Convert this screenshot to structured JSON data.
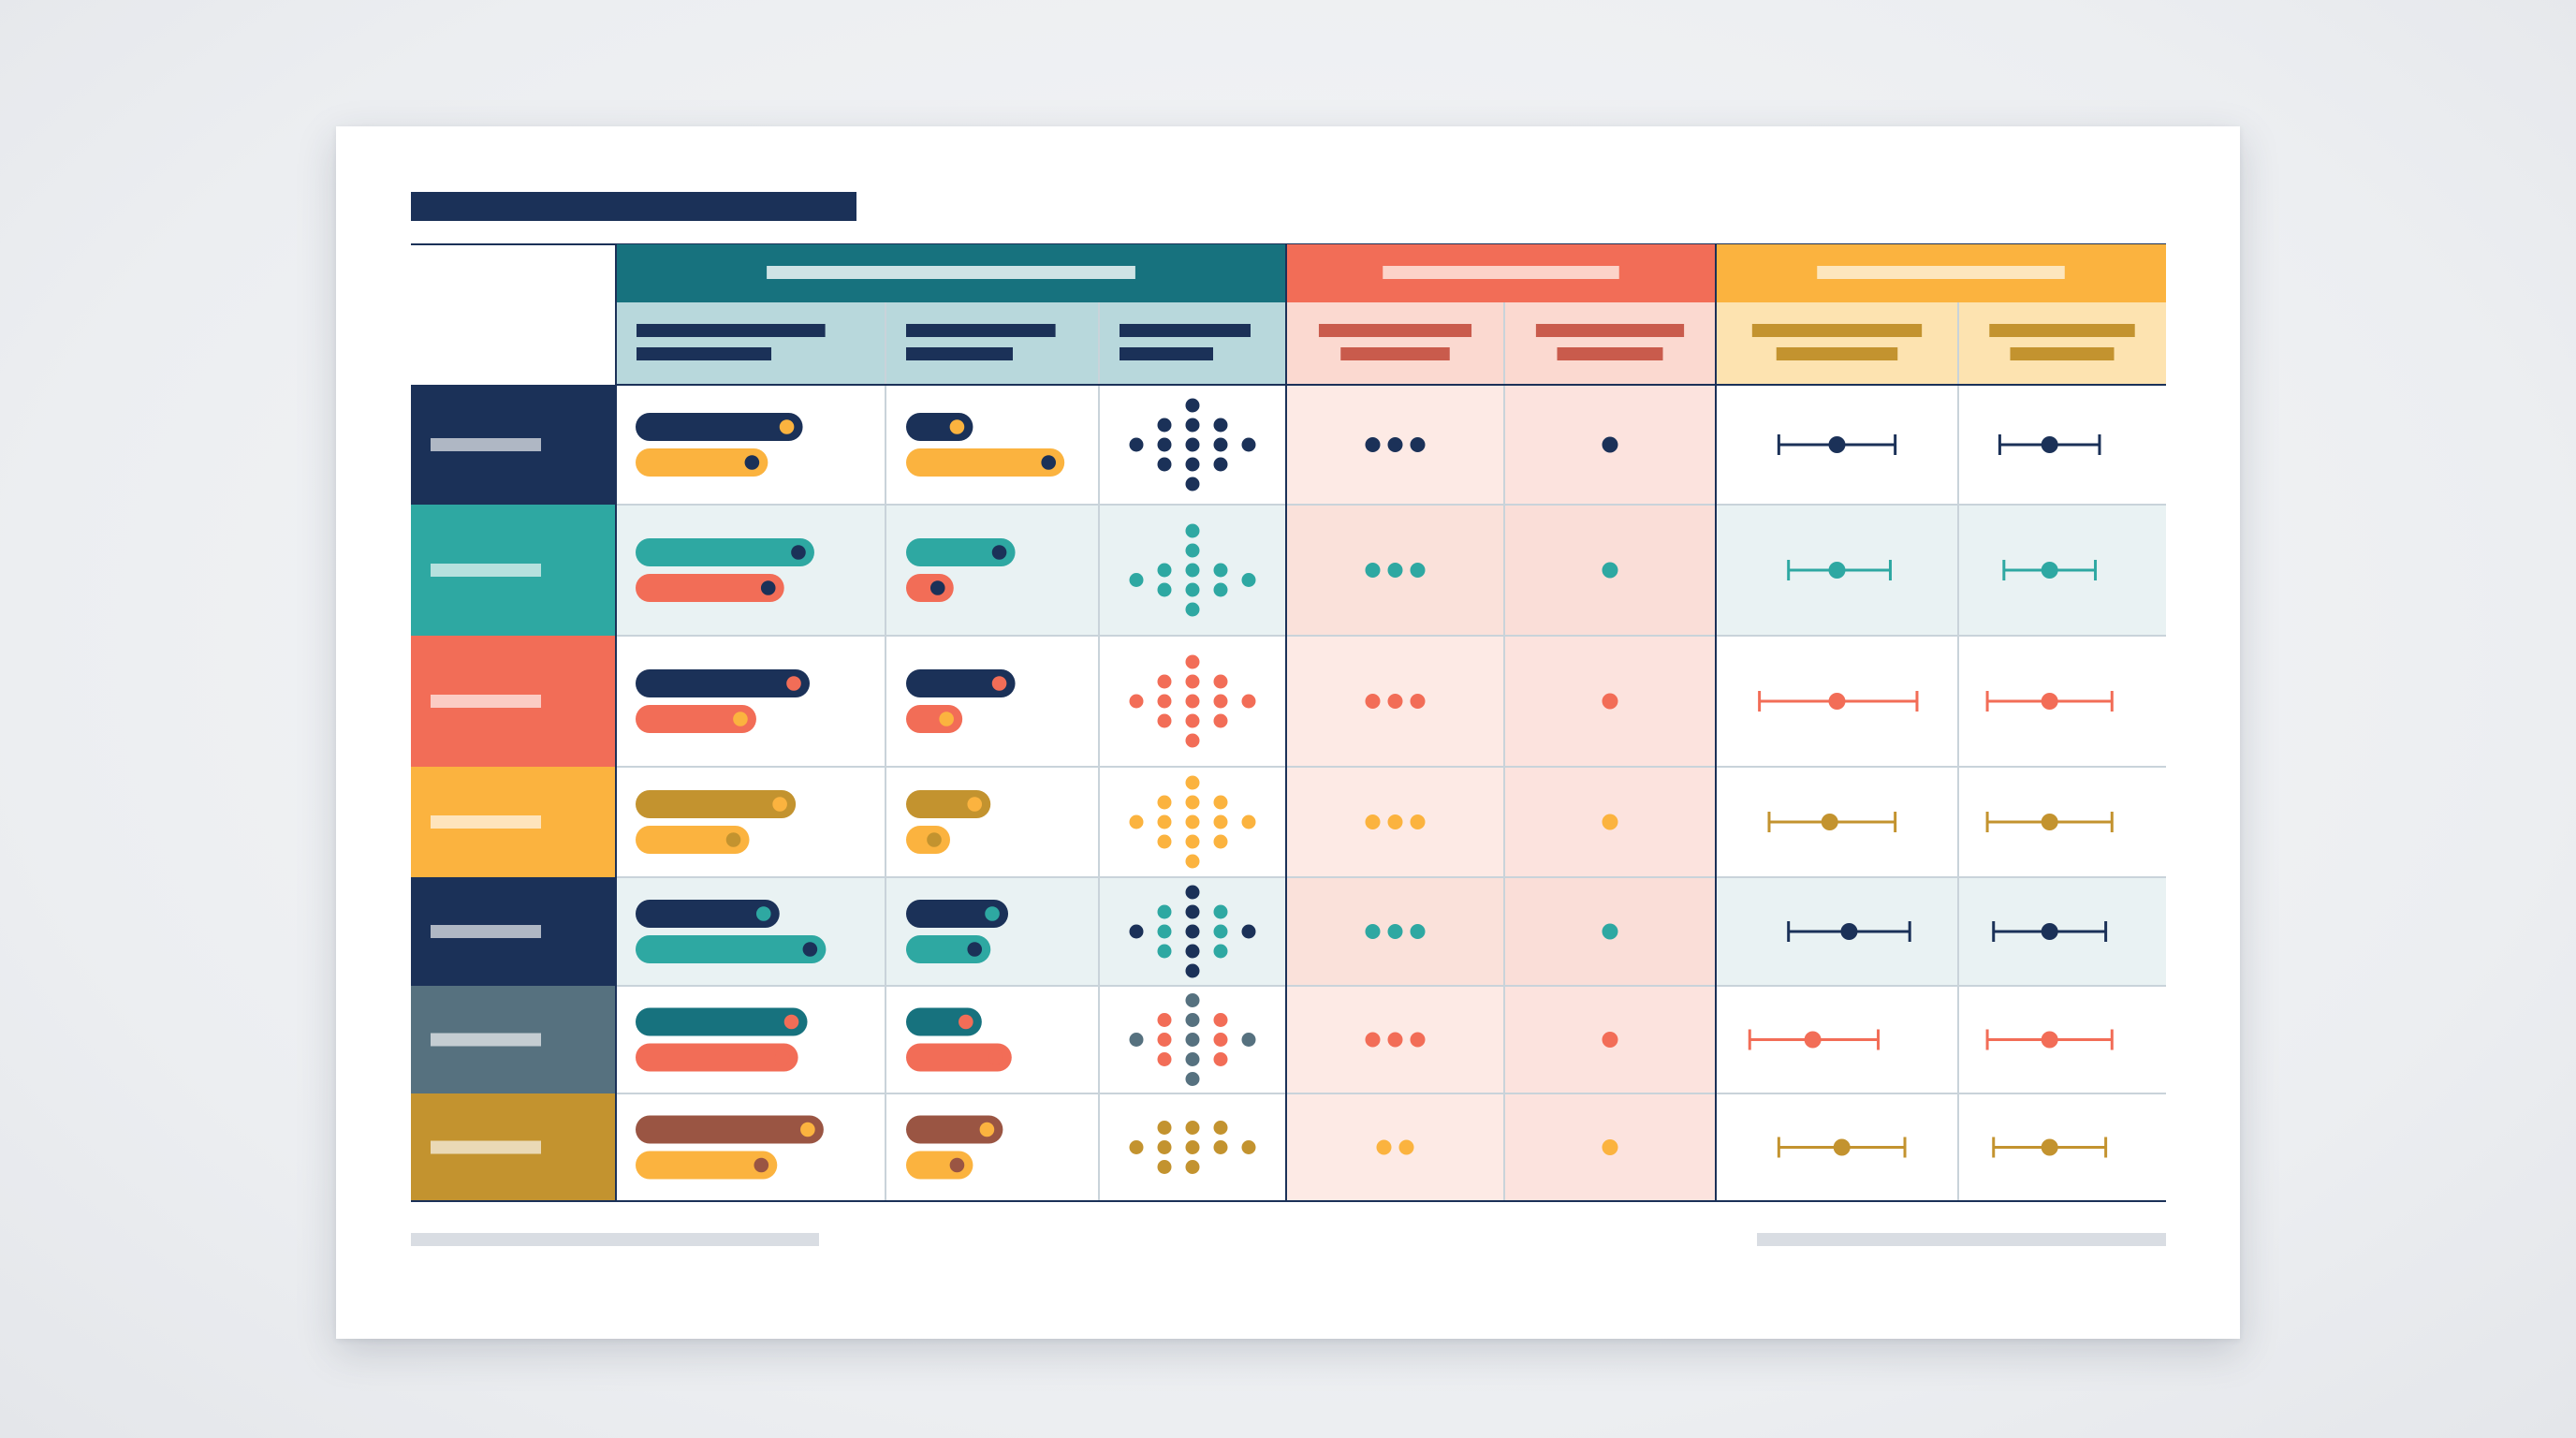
{
  "colors": {
    "navy": "#1b3158",
    "teal": "#2ea8a2",
    "deep_teal": "#17727e",
    "coral": "#f26d57",
    "amber": "#fbb33f",
    "ochre": "#c3932f",
    "slate": "#56717f",
    "brown": "#9a5543",
    "header_teal_light": "#b8d8dc",
    "header_coral_light": "#fbd9d0",
    "header_amber_light": "#fde3b0",
    "coral_zone": "#fdeae5",
    "row_tint": "#e9f2f3",
    "grid_line": "#c9d3da",
    "frame_line": "#1b3158",
    "footer_bar": "#d9dde3"
  },
  "header_groups": [
    {
      "key": "bars",
      "color": "deep_teal",
      "sub_color": "header_teal_light",
      "label_color": "#cfe3e5",
      "sub_label_color": "navy",
      "subcolumns": 3
    },
    {
      "key": "dots",
      "color": "coral",
      "sub_color": "header_coral_light",
      "label_color": "#fcd3c9",
      "sub_label_color": "#c95b4c",
      "subcolumns": 2
    },
    {
      "key": "ranges",
      "color": "amber",
      "sub_color": "header_amber_light",
      "label_color": "#fde6bd",
      "sub_label_color": "ochre",
      "subcolumns": 2
    }
  ],
  "rows": [
    {
      "label_color": "navy",
      "tint": false,
      "bars_a": {
        "top": "navy",
        "bottom": "amber",
        "top_dot": "amber",
        "bottom_dot": "navy",
        "top_len": 0.72,
        "bottom_len": 0.57
      },
      "bars_b": {
        "top": "navy",
        "bottom": "amber",
        "top_dot": "amber",
        "bottom_dot": "navy",
        "top_len": 0.38,
        "bottom_len": 0.9
      },
      "cluster": {
        "colors": [
          "navy"
        ],
        "pattern": "diamond"
      },
      "dot_row": {
        "color": "navy",
        "count": 3
      },
      "single_dot": {
        "color": "navy"
      },
      "range_a": {
        "color": "navy",
        "low": 0.26,
        "mid": 0.5,
        "high": 0.74
      },
      "range_b": {
        "color": "navy",
        "low": 0.2,
        "mid": 0.44,
        "high": 0.68
      }
    },
    {
      "label_color": "teal",
      "tint": true,
      "bars_a": {
        "top": "teal",
        "bottom": "coral",
        "top_dot": "navy",
        "bottom_dot": "navy",
        "top_len": 0.77,
        "bottom_len": 0.64
      },
      "bars_b": {
        "top": "teal",
        "bottom": "coral",
        "top_dot": "navy",
        "bottom_dot": "navy",
        "top_len": 0.62,
        "bottom_len": 0.27
      },
      "cluster": {
        "colors": [
          "teal"
        ],
        "pattern": "arrow"
      },
      "dot_row": {
        "color": "teal",
        "count": 3
      },
      "single_dot": {
        "color": "teal"
      },
      "range_a": {
        "color": "teal",
        "low": 0.3,
        "mid": 0.5,
        "high": 0.72
      },
      "range_b": {
        "color": "teal",
        "low": 0.22,
        "mid": 0.44,
        "high": 0.66
      }
    },
    {
      "label_color": "coral",
      "tint": false,
      "bars_a": {
        "top": "navy",
        "bottom": "coral",
        "top_dot": "coral",
        "bottom_dot": "amber",
        "top_len": 0.75,
        "bottom_len": 0.52
      },
      "bars_b": {
        "top": "navy",
        "bottom": "coral",
        "top_dot": "coral",
        "bottom_dot": "amber",
        "top_len": 0.62,
        "bottom_len": 0.32
      },
      "cluster": {
        "colors": [
          "coral"
        ],
        "pattern": "diamond"
      },
      "dot_row": {
        "color": "coral",
        "count": 3
      },
      "single_dot": {
        "color": "coral"
      },
      "range_a": {
        "color": "coral",
        "low": 0.18,
        "mid": 0.5,
        "high": 0.83
      },
      "range_b": {
        "color": "coral",
        "low": 0.14,
        "mid": 0.44,
        "high": 0.74
      }
    },
    {
      "label_color": "amber",
      "tint": false,
      "bars_a": {
        "top": "ochre",
        "bottom": "amber",
        "top_dot": "amber",
        "bottom_dot": "ochre",
        "top_len": 0.69,
        "bottom_len": 0.49
      },
      "bars_b": {
        "top": "ochre",
        "bottom": "amber",
        "top_dot": "amber",
        "bottom_dot": "ochre",
        "top_len": 0.48,
        "bottom_len": 0.25
      },
      "cluster": {
        "colors": [
          "amber"
        ],
        "pattern": "diamond"
      },
      "dot_row": {
        "color": "amber",
        "count": 3
      },
      "single_dot": {
        "color": "amber"
      },
      "range_a": {
        "color": "ochre",
        "low": 0.22,
        "mid": 0.47,
        "high": 0.74
      },
      "range_b": {
        "color": "ochre",
        "low": 0.14,
        "mid": 0.44,
        "high": 0.74
      }
    },
    {
      "label_color": "navy",
      "tint": true,
      "bars_a": {
        "top": "navy",
        "bottom": "teal",
        "top_dot": "teal",
        "bottom_dot": "navy",
        "top_len": 0.62,
        "bottom_len": 0.82
      },
      "bars_b": {
        "top": "navy",
        "bottom": "teal",
        "top_dot": "teal",
        "bottom_dot": "navy",
        "top_len": 0.58,
        "bottom_len": 0.48
      },
      "cluster": {
        "colors": [
          "navy",
          "teal"
        ],
        "pattern": "diamond"
      },
      "dot_row": {
        "color": "teal",
        "count": 3
      },
      "single_dot": {
        "color": "teal"
      },
      "range_a": {
        "color": "navy",
        "low": 0.3,
        "mid": 0.55,
        "high": 0.8
      },
      "range_b": {
        "color": "navy",
        "low": 0.17,
        "mid": 0.44,
        "high": 0.71
      }
    },
    {
      "label_color": "slate",
      "tint": false,
      "bars_a": {
        "top": "deep_teal",
        "bottom": "coral",
        "top_dot": "coral",
        "bottom_dot": "coral",
        "top_len": 0.74,
        "bottom_len": 0.7
      },
      "bars_b": {
        "top": "deep_teal",
        "bottom": "coral",
        "top_dot": "coral",
        "bottom_dot": "coral",
        "top_len": 0.43,
        "bottom_len": 0.6
      },
      "cluster": {
        "colors": [
          "slate",
          "coral"
        ],
        "pattern": "diamond"
      },
      "dot_row": {
        "color": "coral",
        "count": 3
      },
      "single_dot": {
        "color": "coral"
      },
      "range_a": {
        "color": "coral",
        "low": 0.14,
        "mid": 0.4,
        "high": 0.67
      },
      "range_b": {
        "color": "coral",
        "low": 0.14,
        "mid": 0.44,
        "high": 0.74
      }
    },
    {
      "label_color": "ochre",
      "tint": false,
      "bars_a": {
        "top": "brown",
        "bottom": "amber",
        "top_dot": "amber",
        "bottom_dot": "brown",
        "top_len": 0.81,
        "bottom_len": 0.61
      },
      "bars_b": {
        "top": "brown",
        "bottom": "amber",
        "top_dot": "amber",
        "bottom_dot": "brown",
        "top_len": 0.55,
        "bottom_len": 0.38
      },
      "cluster": {
        "colors": [
          "ochre"
        ],
        "pattern": "sparse"
      },
      "dot_row": {
        "color": "amber",
        "count": 2
      },
      "single_dot": {
        "color": "amber"
      },
      "range_a": {
        "color": "ochre",
        "low": 0.26,
        "mid": 0.52,
        "high": 0.78
      },
      "range_b": {
        "color": "ochre",
        "low": 0.17,
        "mid": 0.44,
        "high": 0.71
      }
    }
  ]
}
